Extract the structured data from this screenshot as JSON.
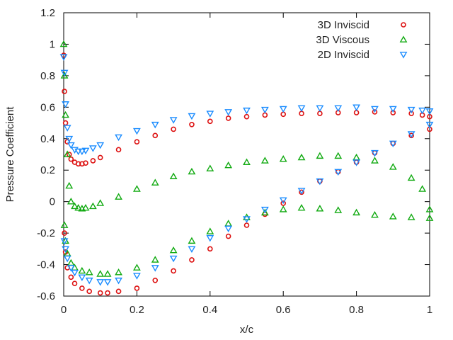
{
  "chart_data": {
    "type": "scatter",
    "title": "",
    "xlabel": "x/c",
    "ylabel": "Pressure Coefficient",
    "xlim": [
      0,
      1
    ],
    "ylim": [
      -0.6,
      1.2
    ],
    "xticks": [
      0,
      0.2,
      0.4,
      0.6,
      0.8,
      1
    ],
    "xtick_labels": [
      "0",
      "0.2",
      "0.4",
      "0.6",
      "0.8",
      "1"
    ],
    "yticks": [
      -0.6,
      -0.4,
      -0.2,
      0,
      0.2,
      0.4,
      0.6,
      0.8,
      1,
      1.2
    ],
    "ytick_labels": [
      "-0.6",
      "-0.4",
      "-0.2",
      "0",
      "0.2",
      "0.4",
      "0.6",
      "0.8",
      "1",
      "1.2"
    ],
    "grid": false,
    "legend_position": "top-right",
    "series": [
      {
        "name": "3D Inviscid",
        "marker": "circle",
        "color": "#dd1111",
        "upper": {
          "x": [
            0,
            0.002,
            0.005,
            0.01,
            0.015,
            0.02,
            0.03,
            0.04,
            0.05,
            0.06,
            0.08,
            0.1,
            0.15,
            0.2,
            0.25,
            0.3,
            0.35,
            0.4,
            0.45,
            0.5,
            0.55,
            0.6,
            0.65,
            0.7,
            0.75,
            0.8,
            0.85,
            0.9,
            0.95,
            0.98,
            1.0
          ],
          "y": [
            0.93,
            0.7,
            0.5,
            0.38,
            0.3,
            0.27,
            0.25,
            0.24,
            0.24,
            0.245,
            0.26,
            0.28,
            0.33,
            0.38,
            0.42,
            0.46,
            0.49,
            0.51,
            0.53,
            0.54,
            0.55,
            0.555,
            0.56,
            0.56,
            0.565,
            0.565,
            0.57,
            0.565,
            0.56,
            0.55,
            0.54
          ]
        },
        "lower": {
          "x": [
            0.002,
            0.005,
            0.01,
            0.02,
            0.03,
            0.05,
            0.07,
            0.1,
            0.12,
            0.15,
            0.2,
            0.25,
            0.3,
            0.35,
            0.4,
            0.45,
            0.5,
            0.55,
            0.6,
            0.65,
            0.7,
            0.75,
            0.8,
            0.85,
            0.9,
            0.95,
            1.0
          ],
          "y": [
            -0.2,
            -0.32,
            -0.42,
            -0.48,
            -0.52,
            -0.55,
            -0.57,
            -0.58,
            -0.58,
            -0.57,
            -0.55,
            -0.5,
            -0.44,
            -0.37,
            -0.3,
            -0.22,
            -0.15,
            -0.08,
            -0.01,
            0.06,
            0.13,
            0.19,
            0.25,
            0.31,
            0.37,
            0.42,
            0.46
          ]
        }
      },
      {
        "name": "3D Viscous",
        "marker": "triangle-up",
        "color": "#11aa11",
        "upper": {
          "x": [
            0,
            0.002,
            0.005,
            0.01,
            0.015,
            0.02,
            0.03,
            0.04,
            0.05,
            0.06,
            0.08,
            0.1,
            0.15,
            0.2,
            0.25,
            0.3,
            0.35,
            0.4,
            0.45,
            0.5,
            0.55,
            0.6,
            0.65,
            0.7,
            0.75,
            0.8,
            0.85,
            0.9,
            0.95,
            0.98,
            1.0
          ],
          "y": [
            1.0,
            0.8,
            0.55,
            0.3,
            0.1,
            0.0,
            -0.03,
            -0.04,
            -0.045,
            -0.04,
            -0.03,
            -0.01,
            0.03,
            0.08,
            0.12,
            0.16,
            0.19,
            0.21,
            0.23,
            0.25,
            0.26,
            0.27,
            0.28,
            0.29,
            0.29,
            0.28,
            0.26,
            0.22,
            0.15,
            0.08,
            -0.05
          ]
        },
        "lower": {
          "x": [
            0.002,
            0.005,
            0.01,
            0.02,
            0.03,
            0.05,
            0.07,
            0.1,
            0.12,
            0.15,
            0.2,
            0.25,
            0.3,
            0.35,
            0.4,
            0.45,
            0.5,
            0.55,
            0.6,
            0.65,
            0.7,
            0.75,
            0.8,
            0.85,
            0.9,
            0.95,
            1.0
          ],
          "y": [
            -0.15,
            -0.25,
            -0.33,
            -0.39,
            -0.42,
            -0.44,
            -0.45,
            -0.46,
            -0.46,
            -0.45,
            -0.42,
            -0.37,
            -0.31,
            -0.25,
            -0.19,
            -0.14,
            -0.1,
            -0.07,
            -0.05,
            -0.04,
            -0.045,
            -0.055,
            -0.07,
            -0.085,
            -0.095,
            -0.1,
            -0.105
          ]
        }
      },
      {
        "name": "2D Inviscid",
        "marker": "triangle-down",
        "color": "#1a8cff",
        "upper": {
          "x": [
            0,
            0.002,
            0.005,
            0.01,
            0.015,
            0.02,
            0.03,
            0.04,
            0.05,
            0.06,
            0.08,
            0.1,
            0.15,
            0.2,
            0.25,
            0.3,
            0.35,
            0.4,
            0.45,
            0.5,
            0.55,
            0.6,
            0.65,
            0.7,
            0.75,
            0.8,
            0.85,
            0.9,
            0.95,
            0.98,
            1.0
          ],
          "y": [
            0.92,
            0.82,
            0.62,
            0.47,
            0.4,
            0.36,
            0.33,
            0.32,
            0.32,
            0.325,
            0.34,
            0.36,
            0.41,
            0.45,
            0.49,
            0.52,
            0.545,
            0.56,
            0.57,
            0.58,
            0.585,
            0.59,
            0.595,
            0.595,
            0.595,
            0.6,
            0.59,
            0.59,
            0.585,
            0.58,
            0.575
          ]
        },
        "lower": {
          "x": [
            0.002,
            0.005,
            0.01,
            0.02,
            0.03,
            0.05,
            0.07,
            0.1,
            0.12,
            0.15,
            0.2,
            0.25,
            0.3,
            0.35,
            0.4,
            0.45,
            0.5,
            0.55,
            0.6,
            0.65,
            0.7,
            0.75,
            0.8,
            0.85,
            0.9,
            0.95,
            1.0
          ],
          "y": [
            -0.25,
            -0.3,
            -0.36,
            -0.42,
            -0.45,
            -0.48,
            -0.5,
            -0.51,
            -0.51,
            -0.5,
            -0.47,
            -0.42,
            -0.36,
            -0.3,
            -0.23,
            -0.17,
            -0.11,
            -0.05,
            0.01,
            0.07,
            0.13,
            0.19,
            0.25,
            0.31,
            0.37,
            0.43,
            0.49
          ]
        }
      }
    ]
  }
}
